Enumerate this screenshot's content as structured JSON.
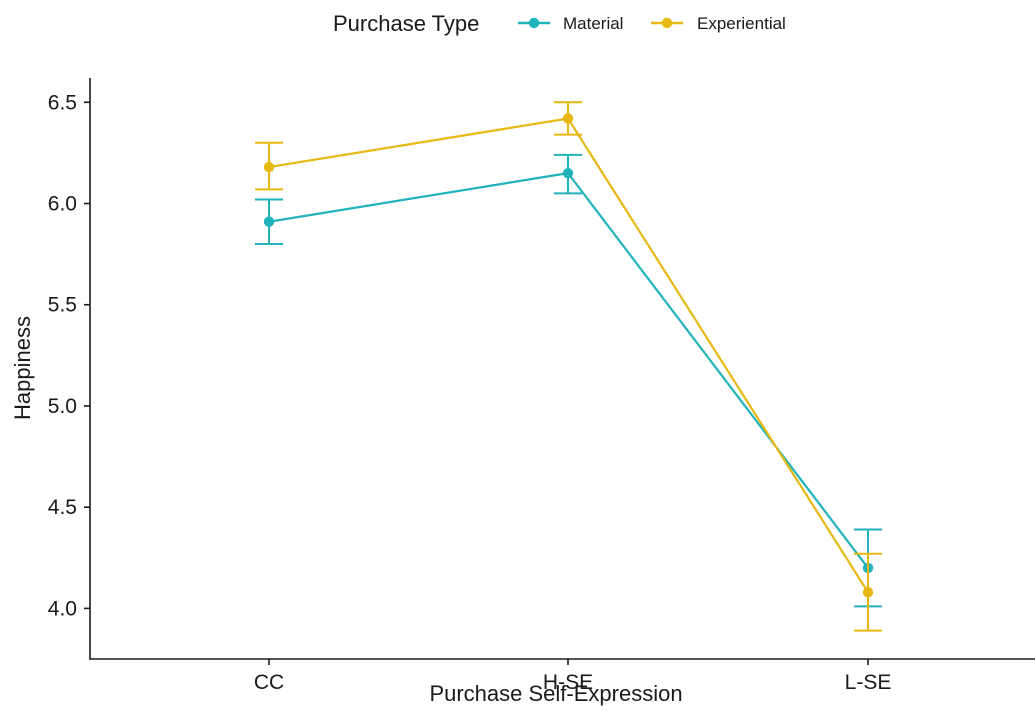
{
  "chart_data": {
    "type": "line",
    "xlabel": "Purchase Self-Expression",
    "ylabel": "Happiness",
    "categories": [
      "CC",
      "H-SE",
      "L-SE"
    ],
    "ylim": [
      3.75,
      6.62
    ],
    "yticks": [
      4.0,
      4.5,
      5.0,
      5.5,
      6.0,
      6.5
    ],
    "ytick_labels": [
      "4.0",
      "4.5",
      "5.0",
      "5.5",
      "6.0",
      "6.5"
    ],
    "grid": false,
    "legend": {
      "title": "Purchase Type",
      "placement": "top"
    },
    "series": [
      {
        "name": "Material",
        "color": "#21B3BC",
        "values": [
          5.91,
          6.15,
          4.2
        ],
        "error_low": [
          5.8,
          6.05,
          4.01
        ],
        "error_high": [
          6.02,
          6.24,
          4.39
        ]
      },
      {
        "name": "Experiential",
        "color": "#E6B811",
        "values": [
          6.18,
          6.42,
          4.08
        ],
        "error_low": [
          6.07,
          6.34,
          3.89
        ],
        "error_high": [
          6.3,
          6.5,
          4.27
        ]
      }
    ]
  }
}
